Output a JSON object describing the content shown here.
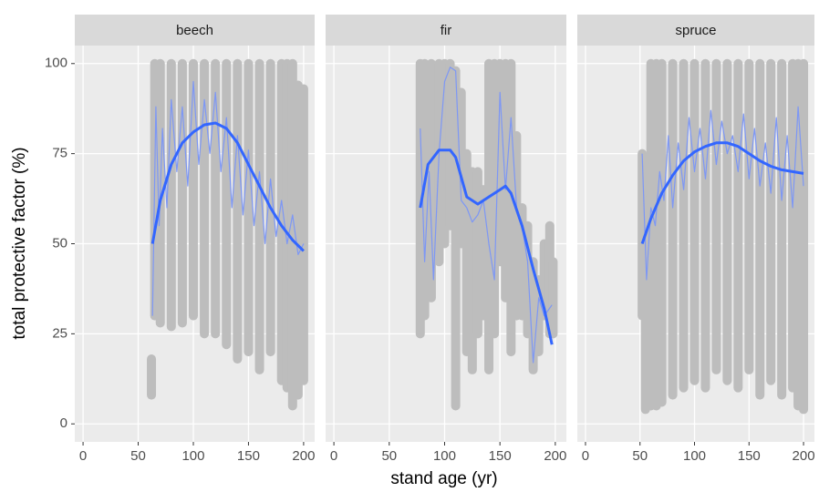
{
  "chart_data": {
    "type": "line",
    "xlabel": "stand age (yr)",
    "ylabel": "total protective factor (%)",
    "xlim": [
      -7.5,
      210
    ],
    "xticks": [
      0,
      50,
      100,
      150,
      200
    ],
    "ylim": [
      -5,
      105
    ],
    "yticks": [
      0,
      25,
      50,
      75,
      100
    ],
    "grid": true,
    "cloud_color": "#bdbdbd",
    "facets": [
      {
        "title": "beech",
        "cloud": {
          "x": [
            62,
            65,
            70,
            80,
            90,
            100,
            110,
            120,
            130,
            140,
            150,
            160,
            170,
            180,
            185,
            190,
            195,
            200
          ],
          "low": [
            8,
            30,
            28,
            27,
            28,
            30,
            25,
            25,
            22,
            18,
            20,
            15,
            20,
            12,
            10,
            5,
            8,
            12
          ],
          "high": [
            18,
            100,
            100,
            100,
            100,
            100,
            100,
            100,
            100,
            100,
            100,
            100,
            100,
            100,
            100,
            100,
            94,
            93
          ]
        },
        "series": [
          {
            "color": "#7d97f5",
            "x": [
              63,
              66,
              69,
              72,
              76,
              80,
              85,
              90,
              95,
              100,
              105,
              110,
              115,
              120,
              125,
              130,
              135,
              140,
              145,
              150,
              155,
              160,
              165,
              170,
              175,
              180,
              185,
              190,
              195,
              200
            ],
            "values": [
              30,
              88,
              55,
              82,
              60,
              90,
              70,
              88,
              66,
              95,
              72,
              90,
              75,
              92,
              70,
              85,
              60,
              80,
              58,
              76,
              55,
              70,
              50,
              68,
              52,
              62,
              50,
              58,
              47,
              50
            ]
          },
          {
            "color": "#3366ff",
            "x": [
              63,
              70,
              80,
              90,
              100,
              110,
              120,
              130,
              140,
              150,
              160,
              170,
              180,
              190,
              200
            ],
            "values": [
              50,
              62,
              72,
              78,
              81,
              83,
              83.5,
              82,
              78,
              72,
              66,
              60,
              55,
              51,
              48
            ]
          }
        ]
      },
      {
        "title": "fir",
        "cloud": {
          "x": [
            78,
            82,
            88,
            95,
            100,
            105,
            110,
            115,
            120,
            125,
            130,
            135,
            140,
            145,
            150,
            155,
            160,
            165,
            170,
            175,
            180,
            185,
            190,
            195,
            198
          ],
          "low": [
            25,
            30,
            35,
            45,
            50,
            55,
            5,
            50,
            20,
            15,
            25,
            30,
            15,
            25,
            45,
            35,
            20,
            30,
            30,
            25,
            15,
            20,
            30,
            25,
            25
          ],
          "high": [
            100,
            100,
            100,
            100,
            100,
            100,
            98,
            92,
            75,
            70,
            70,
            65,
            100,
            100,
            100,
            100,
            100,
            80,
            60,
            55,
            45,
            40,
            50,
            55,
            45
          ]
        },
        "series": [
          {
            "color": "#7d97f5",
            "x": [
              78,
              82,
              86,
              90,
              95,
              100,
              105,
              110,
              115,
              120,
              125,
              130,
              135,
              140,
              145,
              150,
              155,
              160,
              165,
              170,
              175,
              180,
              185,
              190,
              197
            ],
            "values": [
              82,
              45,
              70,
              40,
              75,
              95,
              99,
              98,
              62,
              60,
              56,
              58,
              62,
              50,
              40,
              92,
              65,
              85,
              60,
              55,
              45,
              17,
              35,
              30,
              33
            ]
          },
          {
            "color": "#3366ff",
            "x": [
              78,
              85,
              95,
              105,
              110,
              120,
              130,
              140,
              150,
              155,
              160,
              170,
              180,
              190,
              197
            ],
            "values": [
              60,
              72,
              76,
              76,
              74,
              63,
              61,
              63,
              65,
              66,
              64,
              55,
              43,
              32,
              22
            ]
          }
        ]
      },
      {
        "title": "spruce",
        "cloud": {
          "x": [
            52,
            55,
            60,
            65,
            70,
            80,
            90,
            100,
            110,
            120,
            130,
            140,
            150,
            160,
            170,
            180,
            190,
            195,
            200
          ],
          "low": [
            30,
            4,
            5,
            5,
            6,
            8,
            10,
            12,
            10,
            15,
            12,
            10,
            15,
            8,
            12,
            8,
            10,
            5,
            4
          ],
          "high": [
            75,
            62,
            100,
            100,
            100,
            100,
            100,
            100,
            100,
            100,
            100,
            100,
            100,
            100,
            100,
            100,
            100,
            100,
            100
          ]
        },
        "series": [
          {
            "color": "#7d97f5",
            "x": [
              52,
              56,
              60,
              64,
              68,
              72,
              76,
              80,
              85,
              90,
              95,
              100,
              105,
              110,
              115,
              120,
              125,
              130,
              135,
              140,
              145,
              150,
              155,
              160,
              165,
              170,
              175,
              180,
              185,
              190,
              195,
              200
            ],
            "values": [
              75,
              40,
              60,
              55,
              70,
              62,
              80,
              60,
              78,
              65,
              85,
              70,
              82,
              68,
              87,
              72,
              84,
              75,
              80,
              70,
              86,
              68,
              82,
              66,
              78,
              64,
              85,
              62,
              80,
              60,
              88,
              66
            ]
          },
          {
            "color": "#3366ff",
            "x": [
              52,
              60,
              70,
              80,
              90,
              100,
              110,
              120,
              130,
              140,
              150,
              160,
              170,
              180,
              190,
              200
            ],
            "values": [
              50,
              57,
              64,
              69,
              73,
              75.5,
              77,
              78,
              78,
              77,
              75,
              73,
              71.5,
              70.5,
              70,
              69.5
            ]
          }
        ]
      }
    ]
  }
}
